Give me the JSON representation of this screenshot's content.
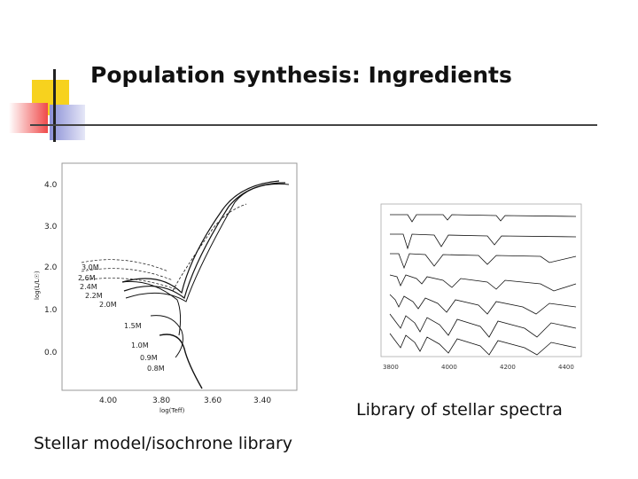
{
  "slide": {
    "title": "Population synthesis: Ingredients",
    "caption_spectra": "Library of stellar spectra",
    "caption_models": "Stellar model/isochrone library"
  },
  "colors": {
    "accent_yellow": "#f7d21e",
    "accent_red": "#ef4a4a",
    "accent_blue": "#8a8fd6",
    "rule": "#222222"
  },
  "hr_diagram": {
    "y_ticks": [
      "4.0",
      "3.0",
      "2.0",
      "1.0",
      "0.0"
    ],
    "x_ticks": [
      "4.00",
      "3.80",
      "3.60",
      "3.40"
    ],
    "mass_labels": [
      "3.0M",
      "2.6M",
      "2.4M",
      "2.2M",
      "2.0M",
      "1.5M",
      "1.0M",
      "0.9M",
      "0.8M"
    ]
  },
  "spectra_plot": {
    "x_ticks": [
      "3800",
      "4000",
      "4200",
      "4400"
    ]
  }
}
